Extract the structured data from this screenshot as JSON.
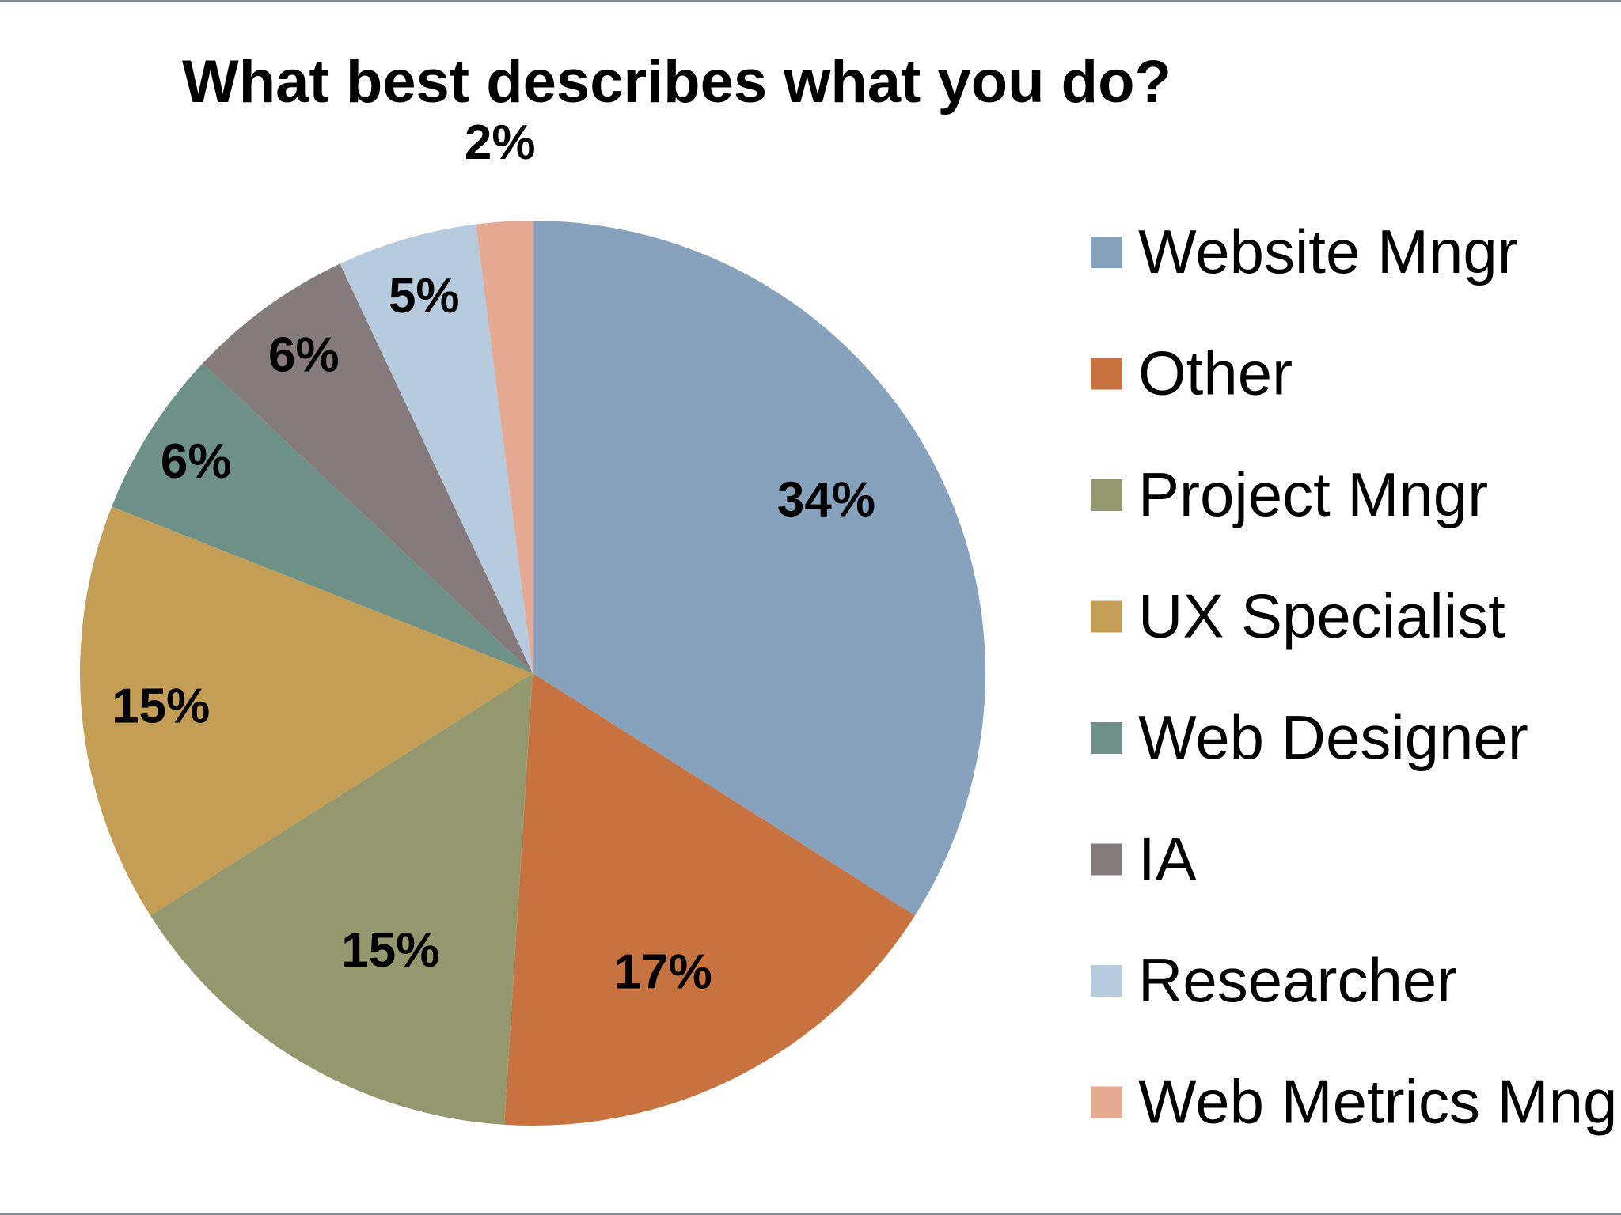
{
  "chart_data": {
    "type": "pie",
    "title": "What best describes what you do?",
    "categories": [
      "Website Mngr",
      "Other",
      "Project Mngr",
      "UX Specialist",
      "Web Designer",
      "IA",
      "Researcher",
      "Web Metrics Mngr"
    ],
    "values": [
      34,
      17,
      15,
      15,
      6,
      6,
      5,
      2
    ],
    "labels": [
      "34%",
      "17%",
      "15%",
      "15%",
      "6%",
      "6%",
      "5%",
      "2%"
    ],
    "colors": [
      "#86a2bc",
      "#c8733f",
      "#94986f",
      "#c49e55",
      "#6d9186",
      "#857b7d",
      "#b7cbdf",
      "#e6aa92"
    ],
    "legend_position": "right",
    "start_angle": "top, clockwise"
  }
}
